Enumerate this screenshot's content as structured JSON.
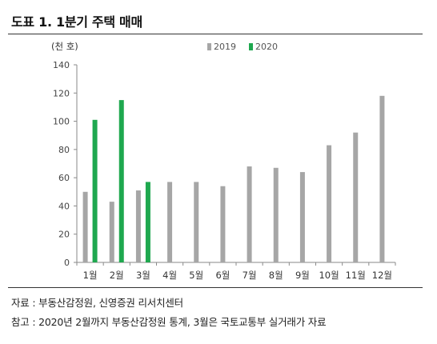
{
  "figure": {
    "title": "도표 1. 1분기 주택 매매",
    "source_note": "자료 : 부동산감정원, 신영증권 리서치센터",
    "ref_note": "참고 : 2020년 2월까지 부동산감정원 통계, 3월은 국토교통부 실거래가 자료"
  },
  "chart_data": {
    "type": "bar",
    "unit_label": "(천 호)",
    "categories": [
      "1월",
      "2월",
      "3월",
      "4월",
      "5월",
      "6월",
      "7월",
      "8월",
      "9월",
      "10월",
      "11월",
      "12월"
    ],
    "series": [
      {
        "name": "2019",
        "color": "#a6a6a6",
        "values": [
          50,
          43,
          51,
          57,
          57,
          54,
          68,
          67,
          64,
          83,
          92,
          118
        ]
      },
      {
        "name": "2020",
        "color": "#1fa84f",
        "values": [
          101,
          115,
          57,
          null,
          null,
          null,
          null,
          null,
          null,
          null,
          null,
          null
        ]
      }
    ],
    "ylim": [
      0,
      140
    ],
    "yticks": [
      0,
      20,
      40,
      60,
      80,
      100,
      120,
      140
    ],
    "grid": false,
    "legend_position": "top-center"
  }
}
